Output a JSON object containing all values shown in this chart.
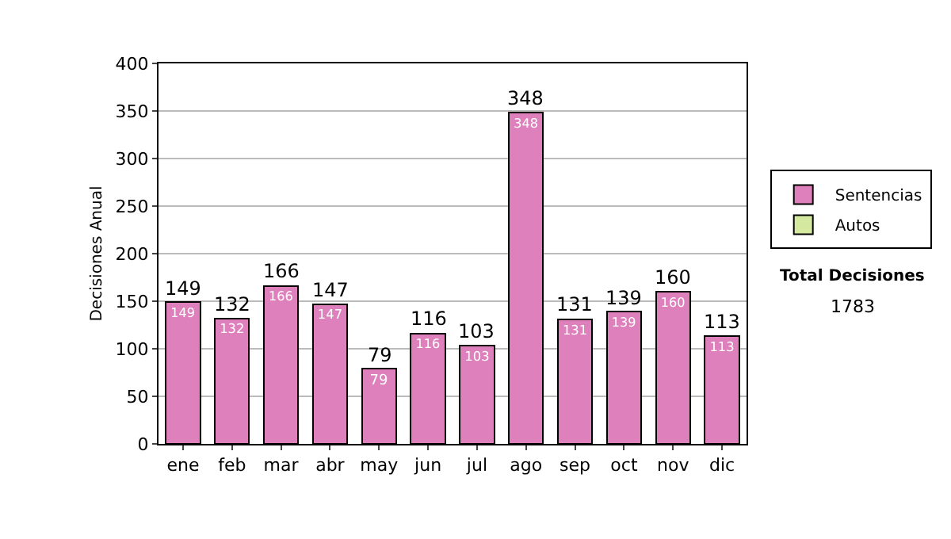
{
  "chart_data": {
    "type": "bar",
    "ylabel": "Decisiones Anual",
    "categories": [
      "ene",
      "feb",
      "mar",
      "abr",
      "may",
      "jun",
      "jul",
      "ago",
      "sep",
      "oct",
      "nov",
      "dic"
    ],
    "series": [
      {
        "name": "Sentencias",
        "color": "#dd80bb",
        "values": [
          149,
          132,
          166,
          147,
          79,
          116,
          103,
          348,
          131,
          139,
          160,
          113
        ],
        "value_labels": [
          "149",
          "132",
          "166",
          "147",
          "79",
          "116",
          "103",
          "348",
          "131",
          "139",
          "160",
          "113"
        ]
      },
      {
        "name": "Autos",
        "color": "#d4e8a0",
        "values": [
          null,
          null,
          null,
          null,
          null,
          null,
          null,
          null,
          null,
          null,
          null,
          null
        ]
      }
    ],
    "stacked": true,
    "totals": [
      "149",
      "132",
      "166",
      "147",
      "79",
      "116",
      "103",
      "348",
      "131",
      "139",
      "160",
      "113"
    ],
    "ylim": [
      0,
      400
    ],
    "yticks": [
      0,
      50,
      100,
      150,
      200,
      250,
      300,
      350,
      400
    ],
    "grid": "y",
    "legend": "right",
    "annotations": [
      "Total Decisiones",
      "1783"
    ]
  }
}
